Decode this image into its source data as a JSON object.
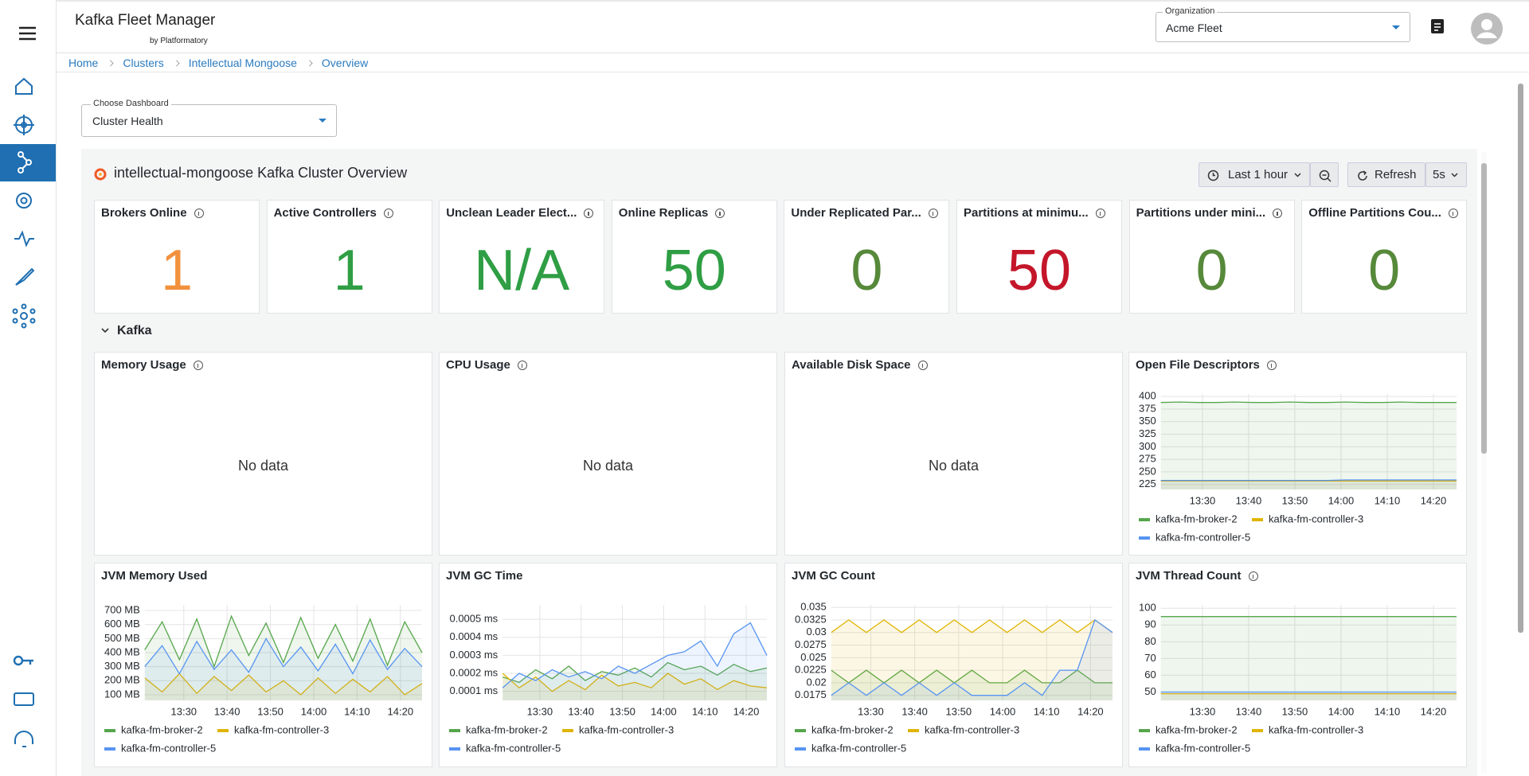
{
  "header": {
    "title": "Kafka Fleet Manager",
    "subtitle": "by Platformatory",
    "org_label": "Organization",
    "org_value": "Acme Fleet"
  },
  "breadcrumbs": [
    "Home",
    "Clusters",
    "Intellectual Mongoose",
    "Overview"
  ],
  "dashboard_select": {
    "label": "Choose Dashboard",
    "value": "Cluster Health"
  },
  "dashboard": {
    "title": "intellectual-mongoose Kafka Cluster Overview",
    "time_range": "Last 1 hour",
    "refresh": "Refresh",
    "refresh_interval": "5s",
    "stats": [
      {
        "title": "Brokers Online",
        "value": "1",
        "color": "#f2913d"
      },
      {
        "title": "Active Controllers",
        "value": "1",
        "color": "#2f9e44"
      },
      {
        "title": "Unclean Leader Elect...",
        "value": "N/A",
        "color": "#2f9e44"
      },
      {
        "title": "Online Replicas",
        "value": "50",
        "color": "#2f9e44"
      },
      {
        "title": "Under Replicated Par...",
        "value": "0",
        "color": "#56893a"
      },
      {
        "title": "Partitions at minimu...",
        "value": "50",
        "color": "#c4162a"
      },
      {
        "title": "Partitions under mini...",
        "value": "0",
        "color": "#56893a"
      },
      {
        "title": "Offline Partitions Cou...",
        "value": "0",
        "color": "#56893a"
      }
    ],
    "section": "Kafka",
    "panels": [
      {
        "title": "Memory Usage",
        "no_data": "No data",
        "info": true
      },
      {
        "title": "CPU Usage",
        "no_data": "No data",
        "info": true
      },
      {
        "title": "Available Disk Space",
        "no_data": "No data",
        "info": true
      }
    ]
  },
  "chart_data": [
    {
      "type": "line",
      "title": "Open File Descriptors",
      "info": true,
      "legend": "bottom",
      "grid": true,
      "x": [
        "13:21",
        "13:25",
        "13:29",
        "13:33",
        "13:37",
        "13:41",
        "13:45",
        "13:49",
        "13:53",
        "13:57",
        "14:01",
        "14:05",
        "14:09",
        "14:13",
        "14:17",
        "14:21",
        "14:25"
      ],
      "xlim": [
        "13:21",
        "14:25"
      ],
      "xticks": [
        "13:30",
        "13:40",
        "13:50",
        "14:00",
        "14:10",
        "14:20"
      ],
      "ylim": [
        215,
        405
      ],
      "yticks": [
        225,
        250,
        275,
        300,
        325,
        350,
        375,
        400
      ],
      "series": [
        {
          "name": "kafka-fm-broker-2",
          "color": "#56a64b",
          "values": [
            388,
            389,
            388,
            388,
            389,
            388,
            388,
            389,
            388,
            388,
            389,
            388,
            388,
            389,
            388,
            388,
            388
          ]
        },
        {
          "name": "kafka-fm-controller-3",
          "color": "#e0b400",
          "values": [
            232,
            232,
            232,
            232,
            232,
            232,
            232,
            232,
            232,
            232,
            232,
            232,
            232,
            232,
            232,
            232,
            232
          ]
        },
        {
          "name": "kafka-fm-controller-5",
          "color": "#5794f2",
          "values": [
            233,
            233,
            233,
            233,
            233,
            233,
            233,
            233,
            233,
            233,
            234,
            234,
            234,
            234,
            234,
            234,
            234
          ]
        }
      ]
    },
    {
      "type": "line",
      "title": "JVM Memory Used",
      "info": false,
      "legend": "bottom",
      "grid": true,
      "x": [
        "13:21",
        "13:25",
        "13:29",
        "13:33",
        "13:37",
        "13:41",
        "13:45",
        "13:49",
        "13:53",
        "13:57",
        "14:01",
        "14:05",
        "14:09",
        "14:13",
        "14:17",
        "14:21",
        "14:25"
      ],
      "xlim": [
        "13:21",
        "14:25"
      ],
      "xticks": [
        "13:30",
        "13:40",
        "13:50",
        "14:00",
        "14:10",
        "14:20"
      ],
      "ylim": [
        60,
        740
      ],
      "yticks": [
        {
          "value": 100,
          "label": "100 MB"
        },
        {
          "value": 200,
          "label": "200 MB"
        },
        {
          "value": 300,
          "label": "300 MB"
        },
        {
          "value": 400,
          "label": "400 MB"
        },
        {
          "value": 500,
          "label": "500 MB"
        },
        {
          "value": 600,
          "label": "600 MB"
        },
        {
          "value": 700,
          "label": "700 MB"
        }
      ],
      "series": [
        {
          "name": "kafka-fm-broker-2",
          "color": "#56a64b",
          "values": [
            420,
            620,
            350,
            640,
            300,
            660,
            380,
            610,
            330,
            650,
            360,
            600,
            340,
            640,
            310,
            620,
            400
          ]
        },
        {
          "name": "kafka-fm-controller-3",
          "color": "#e0b400",
          "values": [
            220,
            120,
            250,
            110,
            230,
            130,
            240,
            120,
            200,
            100,
            220,
            110,
            210,
            120,
            230,
            100,
            180
          ]
        },
        {
          "name": "kafka-fm-controller-5",
          "color": "#5794f2",
          "values": [
            300,
            450,
            250,
            480,
            280,
            420,
            260,
            500,
            300,
            440,
            270,
            460,
            250,
            490,
            280,
            430,
            300
          ]
        }
      ]
    },
    {
      "type": "line",
      "title": "JVM GC Time",
      "info": false,
      "legend": "bottom",
      "grid": true,
      "x": [
        "13:21",
        "13:25",
        "13:29",
        "13:33",
        "13:37",
        "13:41",
        "13:45",
        "13:49",
        "13:53",
        "13:57",
        "14:01",
        "14:05",
        "14:09",
        "14:13",
        "14:17",
        "14:21",
        "14:25"
      ],
      "xlim": [
        "13:21",
        "14:25"
      ],
      "xticks": [
        "13:30",
        "13:40",
        "13:50",
        "14:00",
        "14:10",
        "14:20"
      ],
      "ylim": [
        5e-05,
        0.00058
      ],
      "yticks": [
        {
          "value": 0.0001,
          "label": "0.0001 ms"
        },
        {
          "value": 0.0002,
          "label": "0.0002 ms"
        },
        {
          "value": 0.0003,
          "label": "0.0003 ms"
        },
        {
          "value": 0.0004,
          "label": "0.0004 ms"
        },
        {
          "value": 0.0005,
          "label": "0.0005 ms"
        }
      ],
      "series": [
        {
          "name": "kafka-fm-broker-2",
          "color": "#56a64b",
          "values": [
            0.00018,
            0.00015,
            0.00022,
            0.00017,
            0.00024,
            0.00016,
            0.00021,
            0.00019,
            0.00023,
            0.00018,
            0.00026,
            0.00022,
            0.00024,
            0.00019,
            0.00025,
            0.00021,
            0.00023
          ]
        },
        {
          "name": "kafka-fm-controller-3",
          "color": "#e0b400",
          "values": [
            0.0002,
            0.00012,
            0.00018,
            0.0001,
            0.00016,
            0.00011,
            0.00019,
            0.00013,
            0.00015,
            0.00012,
            0.0002,
            0.00014,
            0.00017,
            0.00011,
            0.00016,
            0.00013,
            0.00012
          ]
        },
        {
          "name": "kafka-fm-controller-5",
          "color": "#5794f2",
          "values": [
            0.00012,
            0.0002,
            0.00016,
            0.00022,
            0.00018,
            0.00021,
            0.00017,
            0.00024,
            0.0002,
            0.00025,
            0.0003,
            0.00032,
            0.00038,
            0.00024,
            0.00042,
            0.00048,
            0.0003
          ]
        }
      ]
    },
    {
      "type": "line",
      "title": "JVM GC Count",
      "info": false,
      "legend": "bottom",
      "grid": true,
      "x": [
        "13:21",
        "13:25",
        "13:29",
        "13:33",
        "13:37",
        "13:41",
        "13:45",
        "13:49",
        "13:53",
        "13:57",
        "14:01",
        "14:05",
        "14:09",
        "14:13",
        "14:17",
        "14:21",
        "14:25"
      ],
      "xlim": [
        "13:21",
        "14:25"
      ],
      "xticks": [
        "13:30",
        "13:40",
        "13:50",
        "14:00",
        "14:10",
        "14:20"
      ],
      "ylim": [
        0.0165,
        0.0355
      ],
      "yticks": [
        0.0175,
        0.02,
        0.0225,
        0.025,
        0.0275,
        0.03,
        0.0325,
        0.035
      ],
      "series": [
        {
          "name": "kafka-fm-broker-2",
          "color": "#56a64b",
          "values": [
            0.0225,
            0.02,
            0.0225,
            0.02,
            0.0225,
            0.02,
            0.0225,
            0.02,
            0.0225,
            0.02,
            0.02,
            0.0225,
            0.02,
            0.02,
            0.0225,
            0.02,
            0.02
          ]
        },
        {
          "name": "kafka-fm-controller-3",
          "color": "#e0b400",
          "values": [
            0.03,
            0.0325,
            0.03,
            0.0325,
            0.03,
            0.0325,
            0.03,
            0.0325,
            0.03,
            0.0325,
            0.03,
            0.0325,
            0.03,
            0.0325,
            0.03,
            0.0325,
            0.03
          ]
        },
        {
          "name": "kafka-fm-controller-5",
          "color": "#5794f2",
          "values": [
            0.0175,
            0.02,
            0.0175,
            0.02,
            0.0175,
            0.02,
            0.0175,
            0.02,
            0.0175,
            0.0175,
            0.0175,
            0.02,
            0.0175,
            0.0225,
            0.0225,
            0.0325,
            0.03
          ]
        }
      ]
    },
    {
      "type": "line",
      "title": "JVM Thread Count",
      "info": true,
      "legend": "bottom",
      "grid": true,
      "x": [
        "13:21",
        "13:25",
        "13:29",
        "13:33",
        "13:37",
        "13:41",
        "13:45",
        "13:49",
        "13:53",
        "13:57",
        "14:01",
        "14:05",
        "14:09",
        "14:13",
        "14:17",
        "14:21",
        "14:25"
      ],
      "xlim": [
        "13:21",
        "14:25"
      ],
      "xticks": [
        "13:30",
        "13:40",
        "13:50",
        "14:00",
        "14:10",
        "14:20"
      ],
      "ylim": [
        45,
        102
      ],
      "yticks": [
        50,
        60,
        70,
        80,
        90,
        100
      ],
      "series": [
        {
          "name": "kafka-fm-broker-2",
          "color": "#56a64b",
          "values": [
            95,
            95,
            95,
            95,
            95,
            95,
            95,
            95,
            95,
            95,
            95,
            95,
            95,
            95,
            95,
            95,
            95
          ]
        },
        {
          "name": "kafka-fm-controller-3",
          "color": "#e0b400",
          "values": [
            49,
            49,
            49,
            49,
            49,
            49,
            49,
            49,
            49,
            49,
            49,
            49,
            49,
            49,
            49,
            49,
            49
          ]
        },
        {
          "name": "kafka-fm-controller-5",
          "color": "#5794f2",
          "values": [
            50,
            50,
            50,
            50,
            50,
            50,
            50,
            50,
            50,
            50,
            50,
            50,
            50,
            50,
            50,
            50,
            50
          ]
        }
      ]
    }
  ]
}
